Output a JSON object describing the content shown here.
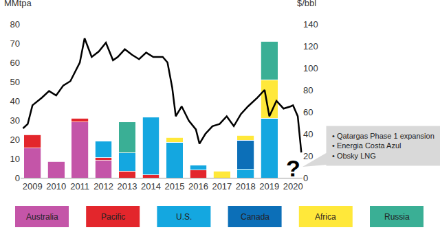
{
  "chart_data": {
    "type": "bar",
    "stacked": true,
    "grid": false,
    "legend": "bottom",
    "y_label": "MMtpa",
    "y2_label": "$/bbl",
    "x": [
      2009,
      2010,
      2011,
      2012,
      2013,
      2014,
      2015,
      2016,
      2017,
      2018,
      2019,
      2020
    ],
    "xlim": [
      2008.5,
      2020.4
    ],
    "xticks": [
      2009,
      2010,
      2011,
      2012,
      2013,
      2014,
      2015,
      2016,
      2017,
      2018,
      2019,
      2020
    ],
    "ylim": [
      0,
      80
    ],
    "yticks": [
      0,
      10,
      20,
      30,
      40,
      50,
      60,
      70,
      80
    ],
    "y2lim": [
      0,
      140
    ],
    "y2ticks": [
      0,
      20,
      40,
      60,
      80,
      100,
      120,
      140
    ],
    "series": [
      {
        "name": "Australia",
        "color": "#c455a8",
        "values": [
          15.5,
          8.5,
          29,
          9,
          null,
          null,
          null,
          null,
          null,
          null,
          null,
          null
        ]
      },
      {
        "name": "Pacific",
        "color": "#e3262c",
        "values": [
          7,
          null,
          2,
          1.5,
          3.5,
          1.5,
          null,
          4,
          null,
          null,
          null,
          null
        ]
      },
      {
        "name": "U.S.",
        "color": "#14a7e0",
        "values": [
          null,
          null,
          null,
          8.5,
          9.5,
          30,
          18.5,
          2.5,
          null,
          4.5,
          31,
          null
        ]
      },
      {
        "name": "Canada",
        "color": "#0c6fb8",
        "values": [
          null,
          null,
          null,
          null,
          null,
          null,
          null,
          null,
          null,
          15,
          null,
          null
        ]
      },
      {
        "name": "Africa",
        "color": "#ffe83a",
        "values": [
          null,
          null,
          null,
          null,
          null,
          null,
          2.5,
          null,
          3.5,
          2.5,
          20,
          null
        ]
      },
      {
        "name": "Russia",
        "color": "#3aaf95",
        "values": [
          null,
          null,
          null,
          null,
          16,
          null,
          null,
          null,
          null,
          null,
          20,
          null
        ]
      },
      {
        "type": "line",
        "axis": "y2",
        "color": "#000000",
        "x": [
          2008.6,
          2008.8,
          2009.0,
          2009.4,
          2009.7,
          2010.0,
          2010.3,
          2010.6,
          2011.0,
          2011.2,
          2011.5,
          2011.8,
          2012.1,
          2012.4,
          2012.6,
          2012.9,
          2013.2,
          2013.5,
          2013.8,
          2014.1,
          2014.5,
          2014.7,
          2014.9,
          2015.05,
          2015.3,
          2015.6,
          2015.9,
          2016.05,
          2016.3,
          2016.6,
          2016.9,
          2017.2,
          2017.5,
          2017.8,
          2018.1,
          2018.5,
          2018.8,
          2019.0,
          2019.3,
          2019.6,
          2019.9,
          2020.0,
          2020.2,
          2020.35
        ],
        "values": [
          45,
          49,
          66,
          73,
          79,
          75,
          84,
          88,
          105,
          127,
          110,
          115,
          123,
          107,
          110,
          117,
          112,
          108,
          114,
          110,
          110,
          105,
          82,
          56,
          65,
          52,
          44,
          31,
          40,
          47,
          49,
          56,
          47,
          58,
          65,
          73,
          80,
          56,
          70,
          63,
          65,
          66,
          56,
          23
        ]
      }
    ],
    "annotations": [
      {
        "text": "?",
        "x": 2020,
        "y": 5
      },
      {
        "text": [
          "• Qatargas Phase 1 expansion",
          "• Energia Costa Azul",
          "• Obsky LNG"
        ]
      }
    ]
  }
}
